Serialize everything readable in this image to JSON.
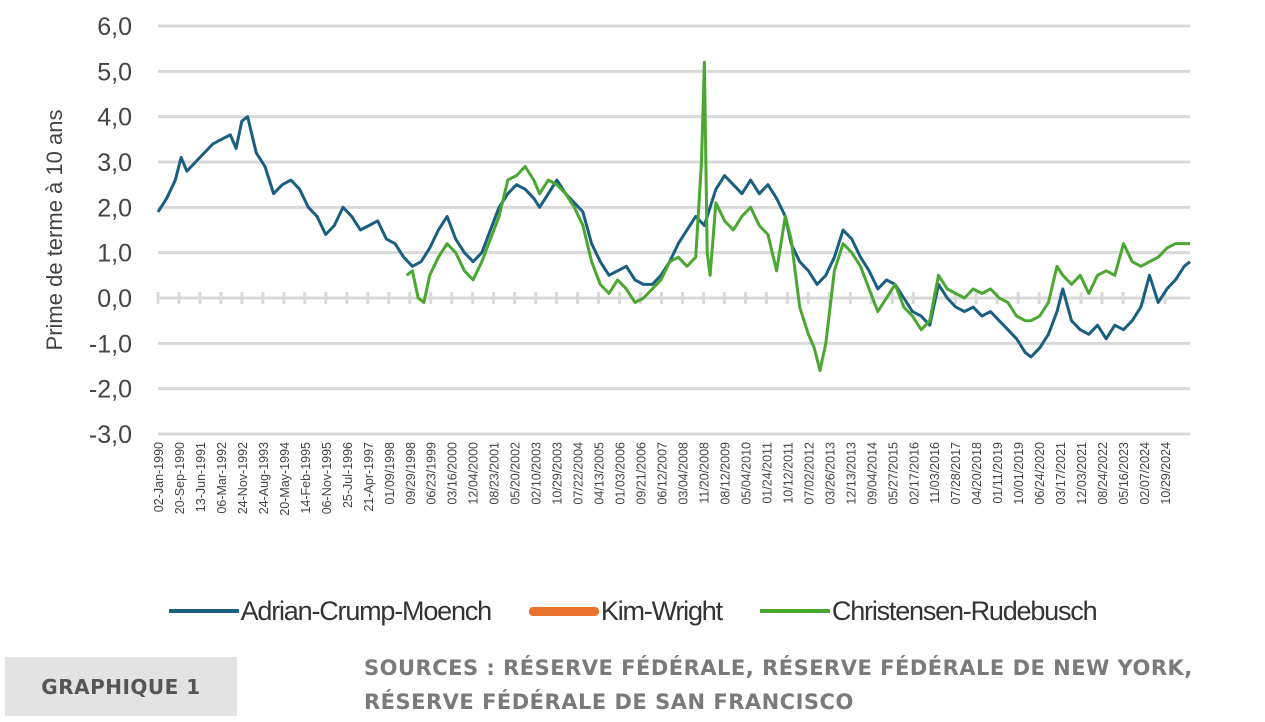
{
  "chart_data": {
    "type": "line",
    "title": "",
    "ylabel": "Prime de terme à 10 ans",
    "xlabel": "",
    "ylim": [
      -3.0,
      6.0
    ],
    "xlim": [
      1990.0,
      2025.7
    ],
    "grid": true,
    "legend_position": "bottom",
    "yticks": [
      "6,0",
      "5,0",
      "4,0",
      "3,0",
      "2,0",
      "1,0",
      "0,0",
      "-1,0",
      "-2,0",
      "-3,0"
    ],
    "ytick_values": [
      6,
      5,
      4,
      3,
      2,
      1,
      0,
      -1,
      -2,
      -3
    ],
    "xtick_labels": [
      "02-Jan-1990",
      "20-Sep-1990",
      "13-Jun-1991",
      "06-Mar-1992",
      "24-Nov-1992",
      "24-Aug-1993",
      "20-May-1994",
      "14-Feb-1995",
      "06-Nov-1995",
      "25-Jul-1996",
      "21-Apr-1997",
      "01/09/1998",
      "09/29/1998",
      "06/23/1999",
      "03/16/2000",
      "12/04/2000",
      "08/23/2001",
      "05/20/2002",
      "02/10/2003",
      "10/29/2003",
      "07/22/2004",
      "04/13/2005",
      "01/03/2006",
      "09/21/2006",
      "06/12/2007",
      "03/04/2008",
      "11/20/2008",
      "08/12/2009",
      "05/04/2010",
      "01/24/2011",
      "10/12/2011",
      "07/02/2012",
      "03/26/2013",
      "12/13/2013",
      "09/04/2014",
      "05/27/2015",
      "02/17/2016",
      "11/03/2016",
      "07/28/2017",
      "04/20/2018",
      "01/11/2019",
      "10/01/2019",
      "06/24/2020",
      "03/17/2021",
      "12/03/2021",
      "08/24/2022",
      "05/16/2023",
      "02/07/2024",
      "10/29/2024"
    ],
    "series": [
      {
        "name": "Adrian-Crump-Moench",
        "color": "#1a5e80",
        "x": [
          1990.0,
          1990.3,
          1990.6,
          1990.8,
          1991.0,
          1991.3,
          1991.6,
          1991.9,
          1992.2,
          1992.5,
          1992.7,
          1992.9,
          1993.1,
          1993.4,
          1993.7,
          1994.0,
          1994.3,
          1994.6,
          1994.9,
          1995.2,
          1995.5,
          1995.8,
          1996.1,
          1996.4,
          1996.7,
          1997.0,
          1997.3,
          1997.6,
          1997.9,
          1998.2,
          1998.5,
          1998.8,
          1999.1,
          1999.4,
          1999.7,
          2000.0,
          2000.3,
          2000.6,
          2000.9,
          2001.2,
          2001.5,
          2001.8,
          2002.1,
          2002.4,
          2002.7,
          2003.0,
          2003.2,
          2003.5,
          2003.8,
          2004.1,
          2004.4,
          2004.7,
          2005.0,
          2005.3,
          2005.6,
          2005.9,
          2006.2,
          2006.5,
          2006.8,
          2007.1,
          2007.4,
          2007.7,
          2008.0,
          2008.3,
          2008.6,
          2008.9,
          2009.1,
          2009.3,
          2009.6,
          2009.9,
          2010.2,
          2010.5,
          2010.8,
          2011.1,
          2011.4,
          2011.7,
          2011.9,
          2012.2,
          2012.5,
          2012.8,
          2013.1,
          2013.4,
          2013.7,
          2014.0,
          2014.3,
          2014.6,
          2014.9,
          2015.2,
          2015.5,
          2015.8,
          2016.1,
          2016.4,
          2016.7,
          2017.0,
          2017.3,
          2017.6,
          2017.9,
          2018.2,
          2018.5,
          2018.8,
          2019.1,
          2019.4,
          2019.7,
          2020.0,
          2020.2,
          2020.5,
          2020.8,
          2021.1,
          2021.3,
          2021.6,
          2021.9,
          2022.2,
          2022.5,
          2022.8,
          2023.1,
          2023.4,
          2023.7,
          2024.0,
          2024.3,
          2024.6,
          2024.9,
          2025.2,
          2025.5,
          2025.7
        ],
        "values": [
          1.9,
          2.2,
          2.6,
          3.1,
          2.8,
          3.0,
          3.2,
          3.4,
          3.5,
          3.6,
          3.3,
          3.9,
          4.0,
          3.2,
          2.9,
          2.3,
          2.5,
          2.6,
          2.4,
          2.0,
          1.8,
          1.4,
          1.6,
          2.0,
          1.8,
          1.5,
          1.6,
          1.7,
          1.3,
          1.2,
          0.9,
          0.7,
          0.8,
          1.1,
          1.5,
          1.8,
          1.3,
          1.0,
          0.8,
          1.0,
          1.5,
          2.0,
          2.3,
          2.5,
          2.4,
          2.2,
          2.0,
          2.3,
          2.6,
          2.3,
          2.1,
          1.9,
          1.2,
          0.8,
          0.5,
          0.6,
          0.7,
          0.4,
          0.3,
          0.3,
          0.5,
          0.8,
          1.2,
          1.5,
          1.8,
          1.6,
          2.0,
          2.4,
          2.7,
          2.5,
          2.3,
          2.6,
          2.3,
          2.5,
          2.2,
          1.8,
          1.2,
          0.8,
          0.6,
          0.3,
          0.5,
          0.9,
          1.5,
          1.3,
          0.9,
          0.6,
          0.2,
          0.4,
          0.3,
          0.0,
          -0.3,
          -0.4,
          -0.6,
          0.3,
          0.0,
          -0.2,
          -0.3,
          -0.2,
          -0.4,
          -0.3,
          -0.5,
          -0.7,
          -0.9,
          -1.2,
          -1.3,
          -1.1,
          -0.8,
          -0.3,
          0.2,
          -0.5,
          -0.7,
          -0.8,
          -0.6,
          -0.9,
          -0.6,
          -0.7,
          -0.5,
          -0.2,
          0.5,
          -0.1,
          0.2,
          0.4,
          0.7,
          0.8
        ]
      },
      {
        "name": "Kim-Wright",
        "color": "#e8722e",
        "x": [],
        "values": []
      },
      {
        "name": "Christensen-Rudebusch",
        "color": "#4aa832",
        "x": [
          1998.6,
          1998.8,
          1999.0,
          1999.2,
          1999.4,
          1999.7,
          2000.0,
          2000.3,
          2000.6,
          2000.9,
          2001.2,
          2001.5,
          2001.8,
          2002.1,
          2002.4,
          2002.7,
          2003.0,
          2003.2,
          2003.5,
          2003.8,
          2004.1,
          2004.4,
          2004.7,
          2005.0,
          2005.3,
          2005.6,
          2005.9,
          2006.2,
          2006.5,
          2006.8,
          2007.1,
          2007.4,
          2007.7,
          2008.0,
          2008.3,
          2008.6,
          2008.8,
          2008.9,
          2009.0,
          2009.1,
          2009.3,
          2009.6,
          2009.9,
          2010.2,
          2010.5,
          2010.8,
          2011.1,
          2011.4,
          2011.7,
          2011.9,
          2012.2,
          2012.5,
          2012.7,
          2012.9,
          2013.1,
          2013.4,
          2013.7,
          2014.0,
          2014.3,
          2014.6,
          2014.9,
          2015.2,
          2015.5,
          2015.8,
          2016.1,
          2016.4,
          2016.7,
          2017.0,
          2017.3,
          2017.6,
          2017.9,
          2018.2,
          2018.5,
          2018.8,
          2019.1,
          2019.4,
          2019.7,
          2020.0,
          2020.2,
          2020.5,
          2020.8,
          2021.1,
          2021.3,
          2021.6,
          2021.9,
          2022.2,
          2022.5,
          2022.8,
          2023.1,
          2023.4,
          2023.7,
          2024.0,
          2024.3,
          2024.6,
          2024.9,
          2025.2,
          2025.5,
          2025.7
        ],
        "values": [
          0.5,
          0.6,
          0.0,
          -0.1,
          0.5,
          0.9,
          1.2,
          1.0,
          0.6,
          0.4,
          0.8,
          1.3,
          1.8,
          2.6,
          2.7,
          2.9,
          2.6,
          2.3,
          2.6,
          2.5,
          2.3,
          2.0,
          1.6,
          0.8,
          0.3,
          0.1,
          0.4,
          0.2,
          -0.1,
          0.0,
          0.2,
          0.4,
          0.8,
          0.9,
          0.7,
          0.9,
          3.0,
          5.2,
          1.0,
          0.5,
          2.1,
          1.7,
          1.5,
          1.8,
          2.0,
          1.6,
          1.4,
          0.6,
          1.8,
          1.3,
          -0.2,
          -0.8,
          -1.1,
          -1.6,
          -1.0,
          0.6,
          1.2,
          1.0,
          0.7,
          0.2,
          -0.3,
          0.0,
          0.3,
          -0.2,
          -0.4,
          -0.7,
          -0.5,
          0.5,
          0.2,
          0.1,
          0.0,
          0.2,
          0.1,
          0.2,
          0.0,
          -0.1,
          -0.4,
          -0.5,
          -0.5,
          -0.4,
          -0.1,
          0.7,
          0.5,
          0.3,
          0.5,
          0.1,
          0.5,
          0.6,
          0.5,
          1.2,
          0.8,
          0.7,
          0.8,
          0.9,
          1.1,
          1.2,
          1.2,
          1.2
        ]
      }
    ]
  },
  "legend": {
    "items": [
      "Adrian-Crump-Moench",
      "Kim-Wright",
      "Christensen-Rudebusch"
    ]
  },
  "footer": {
    "badge": "GRAPHIQUE 1",
    "sources_line1": "SOURCES : RÉSERVE FÉDÉRALE, RÉSERVE FÉDÉRALE DE NEW YORK,",
    "sources_line2": "RÉSERVE FÉDÉRALE DE SAN FRANCISCO"
  }
}
